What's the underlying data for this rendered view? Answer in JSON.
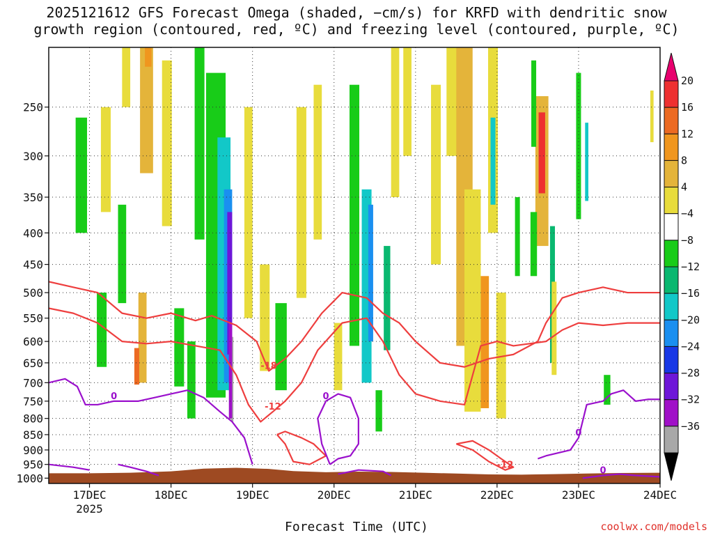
{
  "title": {
    "line1": "2025121612 GFS Forecast Omega (shaded, −cm/s) for KRFD with dendritic snow",
    "line2": "growth region (contoured, red, ºC) and freezing level (contoured, purple, ºC)"
  },
  "footer": {
    "credit": "coolwx.com/models"
  },
  "chart_data": {
    "type": "heatmap",
    "xlabel": "Forecast Time (UTC)",
    "x_ticks": [
      "17DEC",
      "18DEC",
      "19DEC",
      "20DEC",
      "21DEC",
      "22DEC",
      "23DEC",
      "24DEC"
    ],
    "x_year_label": "2025",
    "x_range_days_since_16dec12z": [
      0,
      7.5
    ],
    "y_scale": "log-pressure",
    "y_ticks": [
      250,
      300,
      350,
      400,
      450,
      500,
      550,
      600,
      650,
      700,
      750,
      800,
      850,
      900,
      950,
      1000
    ],
    "y_range_hpa": [
      200,
      1020
    ],
    "grid": true,
    "colorbar": {
      "tick_labels": [
        "20",
        "16",
        "12",
        "8",
        "4",
        "−4",
        "−8",
        "−12",
        "−16",
        "−20",
        "−24",
        "−28",
        "−32",
        "−36"
      ],
      "colors": [
        "#e8006e",
        "#ee3030",
        "#ec6a22",
        "#f0961e",
        "#e4b43a",
        "#e8dc3c",
        "#ffffff",
        "#18cc18",
        "#0ab870",
        "#12c8c8",
        "#1a8ff0",
        "#1838e6",
        "#6e16d8",
        "#a010c8",
        "#a8a8a8",
        "#000000"
      ]
    },
    "omega_regions": [
      {
        "t": 0.7,
        "p": 310,
        "w": 0.06,
        "h": 120,
        "v": 5
      },
      {
        "t": 0.95,
        "p": 180,
        "w": 0.05,
        "h": 140,
        "v": 5
      },
      {
        "t": 1.2,
        "p": 220,
        "w": 0.08,
        "h": 200,
        "v": 6
      },
      {
        "t": 1.22,
        "p": 170,
        "w": 0.04,
        "h": 90,
        "v": 9
      },
      {
        "t": 1.45,
        "p": 300,
        "w": 0.06,
        "h": 180,
        "v": 5
      },
      {
        "t": 0.4,
        "p": 330,
        "w": 0.07,
        "h": 140,
        "v": -6
      },
      {
        "t": 0.65,
        "p": 580,
        "w": 0.06,
        "h": 160,
        "v": -6
      },
      {
        "t": 0.9,
        "p": 440,
        "w": 0.05,
        "h": 160,
        "v": -6
      },
      {
        "t": 1.15,
        "p": 600,
        "w": 0.05,
        "h": 200,
        "v": 6
      },
      {
        "t": 1.08,
        "p": 660,
        "w": 0.03,
        "h": 90,
        "v": 12
      },
      {
        "t": 1.6,
        "p": 620,
        "w": 0.06,
        "h": 180,
        "v": -7
      },
      {
        "t": 1.75,
        "p": 700,
        "w": 0.05,
        "h": 200,
        "v": -6
      },
      {
        "t": 1.85,
        "p": 300,
        "w": 0.06,
        "h": 220,
        "v": -6
      },
      {
        "t": 2.05,
        "p": 480,
        "w": 0.12,
        "h": 520,
        "v": -7
      },
      {
        "t": 2.15,
        "p": 500,
        "w": 0.08,
        "h": 440,
        "v": -12
      },
      {
        "t": 2.2,
        "p": 520,
        "w": 0.05,
        "h": 360,
        "v": -18
      },
      {
        "t": 2.22,
        "p": 500,
        "w": 0.03,
        "h": 260,
        "v": -26
      },
      {
        "t": 2.25,
        "p": 700,
        "w": 0.015,
        "h": 220,
        "v": -35
      },
      {
        "t": 2.23,
        "p": 680,
        "w": 0.02,
        "h": 240,
        "v": -31
      },
      {
        "t": 2.45,
        "p": 400,
        "w": 0.05,
        "h": 300,
        "v": 5
      },
      {
        "t": 2.65,
        "p": 560,
        "w": 0.06,
        "h": 220,
        "v": 5
      },
      {
        "t": 2.85,
        "p": 620,
        "w": 0.07,
        "h": 200,
        "v": -6
      },
      {
        "t": 3.1,
        "p": 380,
        "w": 0.06,
        "h": 260,
        "v": 5
      },
      {
        "t": 3.3,
        "p": 320,
        "w": 0.05,
        "h": 180,
        "v": 5
      },
      {
        "t": 3.55,
        "p": 640,
        "w": 0.05,
        "h": 160,
        "v": 5
      },
      {
        "t": 3.75,
        "p": 420,
        "w": 0.06,
        "h": 380,
        "v": -7
      },
      {
        "t": 3.9,
        "p": 520,
        "w": 0.06,
        "h": 360,
        "v": -12
      },
      {
        "t": 3.95,
        "p": 480,
        "w": 0.03,
        "h": 240,
        "v": -17
      },
      {
        "t": 4.15,
        "p": 520,
        "w": 0.04,
        "h": 200,
        "v": -10
      },
      {
        "t": 4.05,
        "p": 780,
        "w": 0.04,
        "h": 120,
        "v": -6
      },
      {
        "t": 4.25,
        "p": 260,
        "w": 0.05,
        "h": 180,
        "v": 5
      },
      {
        "t": 4.4,
        "p": 200,
        "w": 0.05,
        "h": 200,
        "v": 5
      },
      {
        "t": 4.75,
        "p": 340,
        "w": 0.06,
        "h": 220,
        "v": 5
      },
      {
        "t": 4.95,
        "p": 220,
        "w": 0.07,
        "h": 160,
        "v": 5
      },
      {
        "t": 5.1,
        "p": 400,
        "w": 0.1,
        "h": 420,
        "v": 6
      },
      {
        "t": 5.2,
        "p": 560,
        "w": 0.1,
        "h": 440,
        "v": 5
      },
      {
        "t": 5.35,
        "p": 620,
        "w": 0.05,
        "h": 300,
        "v": 9
      },
      {
        "t": 5.45,
        "p": 300,
        "w": 0.06,
        "h": 200,
        "v": 5
      },
      {
        "t": 5.55,
        "p": 650,
        "w": 0.06,
        "h": 300,
        "v": 5
      },
      {
        "t": 5.45,
        "p": 310,
        "w": 0.03,
        "h": 100,
        "v": -14
      },
      {
        "t": 5.75,
        "p": 410,
        "w": 0.03,
        "h": 120,
        "v": -7
      },
      {
        "t": 6.05,
        "p": 330,
        "w": 0.08,
        "h": 180,
        "v": 6
      },
      {
        "t": 6.05,
        "p": 300,
        "w": 0.04,
        "h": 90,
        "v": 17
      },
      {
        "t": 5.95,
        "p": 420,
        "w": 0.04,
        "h": 100,
        "v": -7
      },
      {
        "t": 5.95,
        "p": 250,
        "w": 0.03,
        "h": 80,
        "v": -7
      },
      {
        "t": 6.18,
        "p": 520,
        "w": 0.03,
        "h": 260,
        "v": -8
      },
      {
        "t": 6.2,
        "p": 580,
        "w": 0.03,
        "h": 200,
        "v": 5
      },
      {
        "t": 6.5,
        "p": 300,
        "w": 0.03,
        "h": 160,
        "v": -7
      },
      {
        "t": 6.6,
        "p": 310,
        "w": 0.02,
        "h": 90,
        "v": -12
      },
      {
        "t": 6.85,
        "p": 720,
        "w": 0.04,
        "h": 80,
        "v": -7
      },
      {
        "t": 7.4,
        "p": 260,
        "w": 0.02,
        "h": 50,
        "v": 5
      }
    ],
    "dgz_contours": [
      {
        "label": "-18",
        "points": [
          [
            0,
            480
          ],
          [
            0.3,
            490
          ],
          [
            0.6,
            500
          ],
          [
            0.9,
            540
          ],
          [
            1.2,
            550
          ],
          [
            1.5,
            540
          ],
          [
            1.8,
            555
          ],
          [
            2.0,
            545
          ],
          [
            2.3,
            565
          ],
          [
            2.55,
            600
          ],
          [
            2.7,
            670
          ],
          [
            2.9,
            640
          ],
          [
            3.1,
            600
          ],
          [
            3.35,
            540
          ],
          [
            3.6,
            500
          ],
          [
            3.9,
            510
          ],
          [
            4.1,
            540
          ],
          [
            4.3,
            560
          ],
          [
            4.5,
            600
          ],
          [
            4.8,
            650
          ],
          [
            5.1,
            660
          ],
          [
            5.4,
            640
          ],
          [
            5.7,
            630
          ],
          [
            6.0,
            600
          ],
          [
            6.1,
            560
          ],
          [
            6.3,
            510
          ],
          [
            6.5,
            500
          ],
          [
            6.8,
            490
          ],
          [
            7.1,
            500
          ],
          [
            7.5,
            500
          ]
        ]
      },
      {
        "label": "-12",
        "points": [
          [
            0,
            530
          ],
          [
            0.3,
            540
          ],
          [
            0.6,
            560
          ],
          [
            0.9,
            600
          ],
          [
            1.2,
            605
          ],
          [
            1.5,
            600
          ],
          [
            1.8,
            610
          ],
          [
            2.1,
            620
          ],
          [
            2.3,
            680
          ],
          [
            2.45,
            760
          ],
          [
            2.6,
            810
          ],
          [
            2.75,
            780
          ],
          [
            2.9,
            750
          ],
          [
            3.1,
            700
          ],
          [
            3.3,
            620
          ],
          [
            3.6,
            560
          ],
          [
            3.9,
            550
          ],
          [
            4.1,
            600
          ],
          [
            4.3,
            680
          ],
          [
            4.5,
            730
          ],
          [
            4.8,
            750
          ],
          [
            5.1,
            760
          ],
          [
            5.3,
            610
          ],
          [
            5.5,
            600
          ],
          [
            5.7,
            610
          ],
          [
            5.9,
            605
          ],
          [
            6.1,
            600
          ],
          [
            6.3,
            575
          ],
          [
            6.5,
            560
          ],
          [
            6.8,
            565
          ],
          [
            7.1,
            560
          ],
          [
            7.5,
            560
          ]
        ]
      },
      {
        "label": "",
        "points": [
          [
            2.8,
            850
          ],
          [
            2.9,
            880
          ],
          [
            3.0,
            940
          ],
          [
            3.2,
            950
          ],
          [
            3.4,
            920
          ],
          [
            3.25,
            880
          ],
          [
            3.1,
            860
          ],
          [
            2.9,
            840
          ],
          [
            2.8,
            850
          ]
        ]
      },
      {
        "label": "-12",
        "points": [
          [
            5.0,
            880
          ],
          [
            5.2,
            900
          ],
          [
            5.4,
            940
          ],
          [
            5.6,
            970
          ],
          [
            5.7,
            960
          ],
          [
            5.55,
            930
          ],
          [
            5.4,
            900
          ],
          [
            5.2,
            870
          ],
          [
            5.0,
            880
          ]
        ]
      }
    ],
    "freezing_contours": [
      {
        "label": "0",
        "points": [
          [
            0,
            700
          ],
          [
            0.2,
            690
          ],
          [
            0.35,
            710
          ],
          [
            0.45,
            760
          ],
          [
            0.6,
            760
          ],
          [
            0.8,
            750
          ],
          [
            1.1,
            750
          ],
          [
            1.3,
            740
          ],
          [
            1.5,
            730
          ],
          [
            1.7,
            720
          ],
          [
            1.9,
            740
          ],
          [
            2.1,
            780
          ],
          [
            2.25,
            810
          ],
          [
            2.4,
            860
          ],
          [
            2.5,
            950
          ]
        ]
      },
      {
        "label": "0",
        "points": [
          [
            3.45,
            950
          ],
          [
            3.35,
            880
          ],
          [
            3.3,
            800
          ],
          [
            3.4,
            750
          ],
          [
            3.55,
            730
          ],
          [
            3.7,
            740
          ],
          [
            3.8,
            800
          ],
          [
            3.8,
            880
          ],
          [
            3.7,
            920
          ],
          [
            3.55,
            930
          ],
          [
            3.45,
            950
          ]
        ]
      },
      {
        "label": "0",
        "points": [
          [
            6.0,
            930
          ],
          [
            6.1,
            920
          ],
          [
            6.4,
            900
          ],
          [
            6.5,
            860
          ],
          [
            6.6,
            760
          ],
          [
            6.8,
            750
          ],
          [
            6.9,
            730
          ],
          [
            7.05,
            720
          ],
          [
            7.2,
            750
          ],
          [
            7.35,
            745
          ],
          [
            7.5,
            745
          ]
        ]
      },
      {
        "label": "",
        "points": [
          [
            0,
            950
          ],
          [
            0.15,
            955
          ],
          [
            0.3,
            960
          ],
          [
            0.5,
            970
          ]
        ]
      },
      {
        "label": "",
        "points": [
          [
            0.85,
            950
          ],
          [
            1.0,
            960
          ],
          [
            1.2,
            975
          ],
          [
            1.35,
            990
          ]
        ]
      },
      {
        "label": "",
        "points": [
          [
            3.55,
            985
          ],
          [
            3.8,
            970
          ],
          [
            4.1,
            975
          ],
          [
            4.2,
            990
          ]
        ]
      },
      {
        "label": "0",
        "points": [
          [
            6.55,
            1000
          ],
          [
            6.8,
            990
          ],
          [
            7.0,
            985
          ],
          [
            7.2,
            990
          ],
          [
            7.5,
            995
          ]
        ]
      }
    ],
    "surface_pressure": [
      [
        0,
        982
      ],
      [
        0.5,
        982
      ],
      [
        1.0,
        980
      ],
      [
        1.5,
        975
      ],
      [
        1.9,
        965
      ],
      [
        2.3,
        962
      ],
      [
        2.7,
        966
      ],
      [
        3.0,
        974
      ],
      [
        3.4,
        978
      ],
      [
        3.8,
        976
      ],
      [
        4.2,
        977
      ],
      [
        4.6,
        980
      ],
      [
        5.0,
        983
      ],
      [
        5.4,
        986
      ],
      [
        5.8,
        987
      ],
      [
        6.2,
        985
      ],
      [
        6.6,
        983
      ],
      [
        7.0,
        981
      ],
      [
        7.5,
        980
      ]
    ]
  }
}
